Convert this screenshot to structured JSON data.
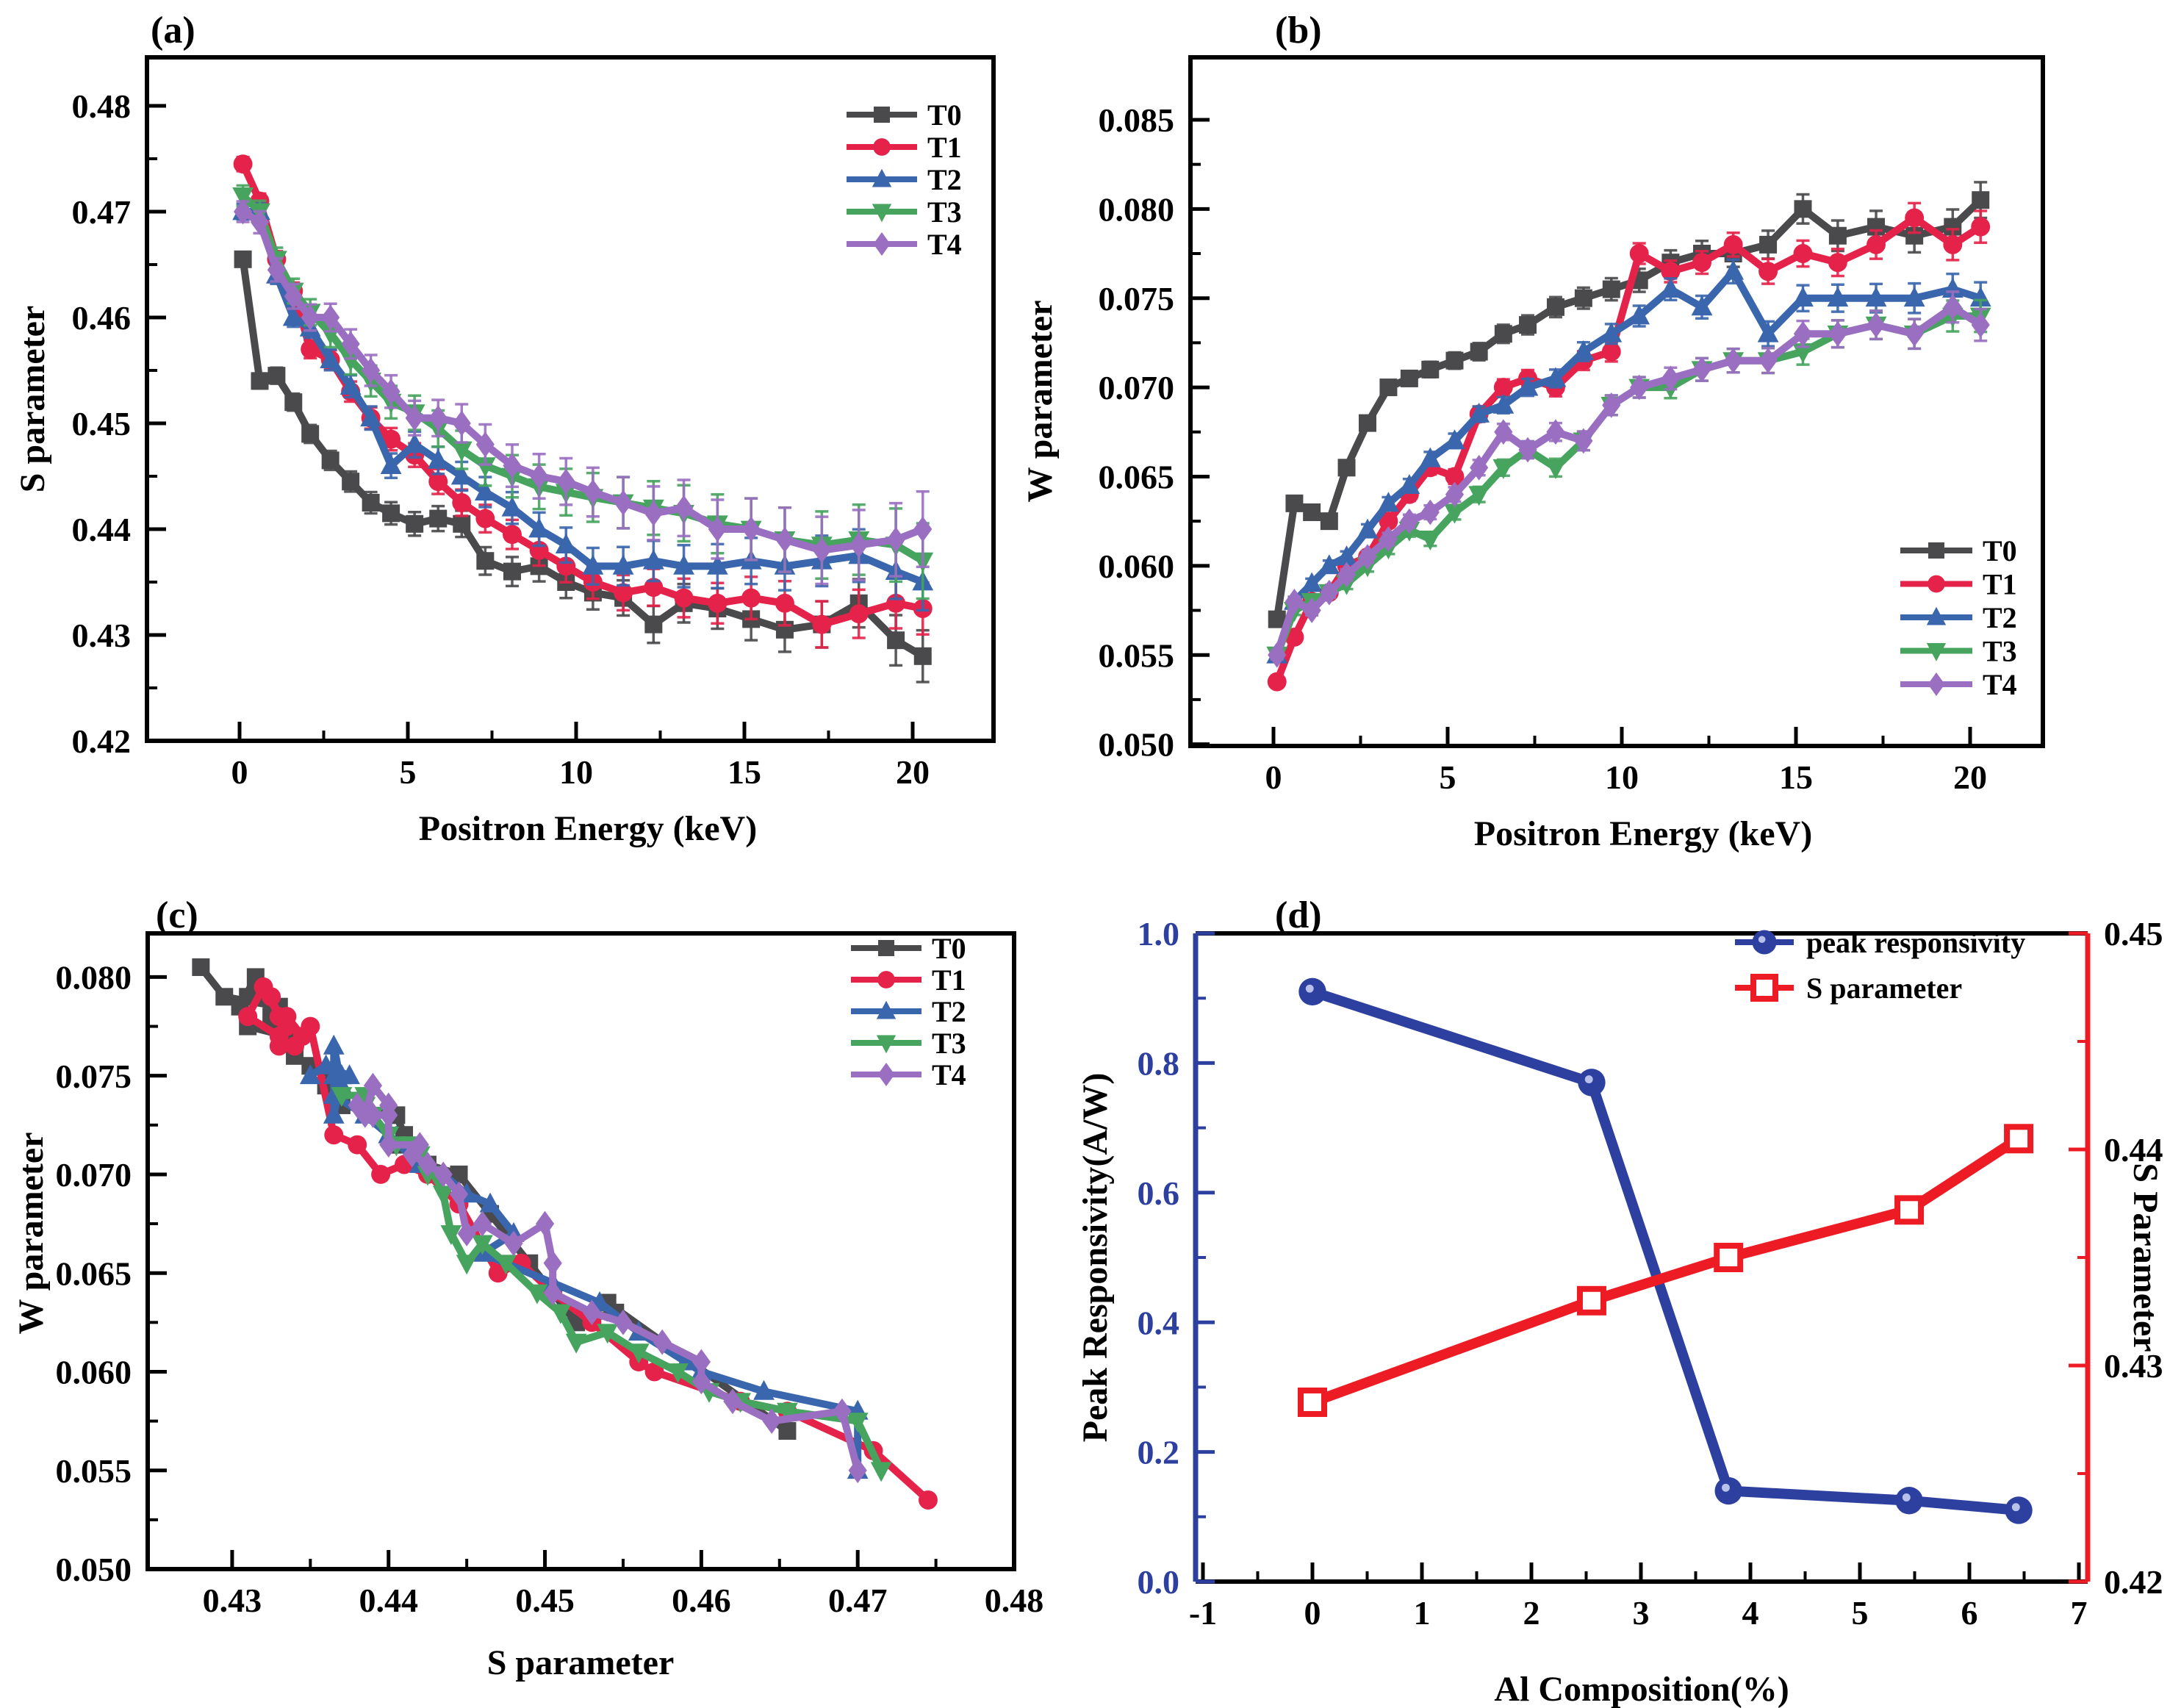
{
  "figure_background": "#ffffff",
  "chart_data": {
    "type": "line",
    "panels": [
      {
        "id": "a",
        "panel_letter": "(a)",
        "xlabel": "Positron Energy (keV)",
        "ylabel": "S parameter",
        "x_ticks": {
          "values": [
            0,
            5,
            10,
            15,
            20
          ],
          "labels": [
            "0",
            "5",
            "10",
            "15",
            "20"
          ]
        },
        "y_ticks": {
          "values": [
            0.42,
            0.43,
            0.44,
            0.45,
            0.46,
            0.47,
            0.48
          ],
          "labels": [
            "0.42",
            "0.43",
            "0.44",
            "0.45",
            "0.46",
            "0.47",
            "0.48"
          ]
        },
        "err_growth": 0.08,
        "x": [
          0.1,
          0.6,
          1.1,
          1.6,
          2.1,
          2.7,
          3.3,
          3.9,
          4.5,
          5.2,
          5.9,
          6.6,
          7.3,
          8.1,
          8.9,
          9.7,
          10.5,
          11.4,
          12.3,
          13.2,
          14.2,
          15.2,
          16.2,
          17.3,
          18.4,
          19.5,
          20.3
        ],
        "series": [
          {
            "name": "T0",
            "color": "#4a4a4c",
            "marker": "square",
            "err_base": 0.0011,
            "y": [
              0.4655,
              0.454,
              0.4545,
              0.452,
              0.449,
              0.4465,
              0.4445,
              0.4425,
              0.4415,
              0.4405,
              0.441,
              0.4405,
              0.437,
              0.436,
              0.4365,
              0.435,
              0.434,
              0.4335,
              0.431,
              0.433,
              0.4325,
              0.4315,
              0.4305,
              0.431,
              0.433,
              0.4295,
              0.428
            ]
          },
          {
            "name": "T1",
            "color": "#e5234a",
            "marker": "circle",
            "err_base": 0.0011,
            "y": [
              0.4745,
              0.471,
              0.4655,
              0.4625,
              0.457,
              0.456,
              0.453,
              0.4505,
              0.4485,
              0.447,
              0.4445,
              0.4425,
              0.441,
              0.4395,
              0.438,
              0.4365,
              0.435,
              0.434,
              0.4345,
              0.4335,
              0.433,
              0.4335,
              0.433,
              0.431,
              0.432,
              0.433,
              0.4325
            ]
          },
          {
            "name": "T2",
            "color": "#3a66ae",
            "marker": "triangle-up",
            "err_base": 0.0012,
            "y": [
              0.47,
              0.47,
              0.464,
              0.46,
              0.459,
              0.456,
              0.4535,
              0.4505,
              0.446,
              0.448,
              0.4465,
              0.445,
              0.4435,
              0.442,
              0.44,
              0.4385,
              0.4365,
              0.4365,
              0.437,
              0.4365,
              0.4365,
              0.437,
              0.4365,
              0.437,
              0.4375,
              0.436,
              0.435
            ]
          },
          {
            "name": "T3",
            "color": "#46a45f",
            "marker": "triangle-down",
            "err_base": 0.0016,
            "y": [
              0.4715,
              0.47,
              0.4655,
              0.4625,
              0.4605,
              0.4585,
              0.456,
              0.454,
              0.452,
              0.451,
              0.4495,
              0.4475,
              0.446,
              0.445,
              0.444,
              0.4435,
              0.443,
              0.4425,
              0.442,
              0.4415,
              0.4405,
              0.44,
              0.439,
              0.4385,
              0.439,
              0.4385,
              0.437
            ]
          },
          {
            "name": "T4",
            "color": "#9a6fc1",
            "marker": "diamond",
            "err_base": 0.0016,
            "y": [
              0.47,
              0.469,
              0.4645,
              0.462,
              0.46,
              0.46,
              0.4575,
              0.455,
              0.453,
              0.4505,
              0.4505,
              0.45,
              0.448,
              0.446,
              0.445,
              0.4445,
              0.4435,
              0.4425,
              0.4415,
              0.442,
              0.44,
              0.44,
              0.439,
              0.438,
              0.4385,
              0.439,
              0.44
            ]
          }
        ],
        "legend_labels": [
          "T0",
          "T1",
          "T2",
          "T3",
          "T4"
        ]
      },
      {
        "id": "b",
        "panel_letter": "(b)",
        "xlabel": "Positron Energy (keV)",
        "ylabel": "W parameter",
        "x_ticks": {
          "values": [
            0,
            5,
            10,
            15,
            20
          ],
          "labels": [
            "0",
            "5",
            "10",
            "15",
            "20"
          ]
        },
        "y_ticks": {
          "values": [
            0.05,
            0.055,
            0.06,
            0.065,
            0.07,
            0.075,
            0.08,
            0.085
          ],
          "labels": [
            "0.050",
            "0.055",
            "0.060",
            "0.065",
            "0.070",
            "0.075",
            "0.080",
            "0.085"
          ]
        },
        "err_growth": 0.08,
        "x": [
          0.1,
          0.6,
          1.1,
          1.6,
          2.1,
          2.7,
          3.3,
          3.9,
          4.5,
          5.2,
          5.9,
          6.6,
          7.3,
          8.1,
          8.9,
          9.7,
          10.5,
          11.4,
          12.3,
          13.2,
          14.2,
          15.2,
          16.2,
          17.3,
          18.4,
          19.5,
          20.3
        ],
        "series": [
          {
            "name": "T0",
            "color": "#4a4a4c",
            "marker": "square",
            "err_base": 0.00045,
            "y": [
              0.057,
              0.0635,
              0.063,
              0.0625,
              0.0655,
              0.068,
              0.07,
              0.0705,
              0.071,
              0.0715,
              0.072,
              0.073,
              0.0735,
              0.0745,
              0.075,
              0.0755,
              0.076,
              0.077,
              0.0775,
              0.0775,
              0.078,
              0.08,
              0.0785,
              0.079,
              0.0785,
              0.079,
              0.0805
            ]
          },
          {
            "name": "T1",
            "color": "#e5234a",
            "marker": "circle",
            "err_base": 0.0004,
            "y": [
              0.0535,
              0.056,
              0.058,
              0.0585,
              0.06,
              0.0605,
              0.0625,
              0.064,
              0.0655,
              0.065,
              0.0685,
              0.07,
              0.0705,
              0.07,
              0.0715,
              0.072,
              0.0775,
              0.0765,
              0.077,
              0.078,
              0.0765,
              0.0775,
              0.077,
              0.078,
              0.0795,
              0.078,
              0.079
            ]
          },
          {
            "name": "T2",
            "color": "#3a66ae",
            "marker": "triangle-up",
            "err_base": 0.0004,
            "y": [
              0.055,
              0.058,
              0.059,
              0.06,
              0.0605,
              0.062,
              0.0635,
              0.0645,
              0.066,
              0.067,
              0.0685,
              0.069,
              0.07,
              0.0705,
              0.072,
              0.073,
              0.074,
              0.0755,
              0.0745,
              0.0765,
              0.073,
              0.075,
              0.075,
              0.075,
              0.075,
              0.0755,
              0.075
            ]
          },
          {
            "name": "T3",
            "color": "#46a45f",
            "marker": "triangle-down",
            "err_base": 0.0004,
            "y": [
              0.055,
              0.0575,
              0.058,
              0.0585,
              0.059,
              0.06,
              0.061,
              0.062,
              0.0615,
              0.063,
              0.064,
              0.0655,
              0.0665,
              0.0655,
              0.067,
              0.069,
              0.07,
              0.07,
              0.071,
              0.0715,
              0.0715,
              0.072,
              0.073,
              0.0735,
              0.073,
              0.074,
              0.074
            ]
          },
          {
            "name": "T4",
            "color": "#9a6fc1",
            "marker": "diamond",
            "err_base": 0.0004,
            "y": [
              0.055,
              0.058,
              0.0575,
              0.0585,
              0.0595,
              0.0605,
              0.0615,
              0.0625,
              0.063,
              0.064,
              0.0655,
              0.0675,
              0.0665,
              0.0675,
              0.067,
              0.069,
              0.07,
              0.0705,
              0.071,
              0.0715,
              0.0715,
              0.073,
              0.073,
              0.0735,
              0.073,
              0.0745,
              0.0735
            ]
          }
        ],
        "legend_labels": [
          "T0",
          "T1",
          "T2",
          "T3",
          "T4"
        ]
      },
      {
        "id": "c",
        "panel_letter": "(c)",
        "xlabel": "S parameter",
        "ylabel": "W parameter",
        "x_ticks": {
          "values": [
            0.43,
            0.44,
            0.45,
            0.46,
            0.47,
            0.48
          ],
          "labels": [
            "0.43",
            "0.44",
            "0.45",
            "0.46",
            "0.47",
            "0.48"
          ]
        },
        "y_ticks": {
          "values": [
            0.05,
            0.055,
            0.06,
            0.065,
            0.07,
            0.075,
            0.08
          ],
          "labels": [
            "0.050",
            "0.055",
            "0.060",
            "0.065",
            "0.070",
            "0.075",
            "0.080"
          ]
        },
        "series_from": {
          "x_panel": "a",
          "y_panel": "b"
        },
        "legend_labels": [
          "T0",
          "T1",
          "T2",
          "T3",
          "T4"
        ]
      },
      {
        "id": "d",
        "panel_letter": "(d)",
        "xlabel": "Al Composition(%)",
        "ylabel_left": "Peak Responsivity(A/W)",
        "ylabel_right": "S Parameter",
        "axis_color_left": "#2e409f",
        "axis_color_right": "#ed1c24",
        "x_ticks": {
          "values": [
            -1,
            0,
            1,
            2,
            3,
            4,
            5,
            6,
            7
          ],
          "labels": [
            "-1",
            "0",
            "1",
            "2",
            "3",
            "4",
            "5",
            "6",
            "7"
          ]
        },
        "y_ticks_left": {
          "values": [
            0.0,
            0.2,
            0.4,
            0.6,
            0.8,
            1.0
          ],
          "labels": [
            "0.0",
            "0.2",
            "0.4",
            "0.6",
            "0.8",
            "1.0"
          ]
        },
        "y_ticks_right": {
          "values": [
            0.42,
            0.43,
            0.44,
            0.45
          ],
          "labels": [
            "0.42",
            "0.43",
            "0.44",
            "0.45"
          ]
        },
        "x": [
          0.0,
          2.55,
          3.8,
          5.45,
          6.45
        ],
        "series": [
          {
            "name": "peak responsivity",
            "color": "#2e409f",
            "marker": "sphere",
            "axis": "left",
            "y": [
              0.91,
              0.77,
              0.14,
              0.125,
              0.11
            ]
          },
          {
            "name": "S parameter",
            "color": "#ed1c24",
            "marker": "osquare",
            "axis": "right",
            "y": [
              0.4283,
              0.433,
              0.435,
              0.4372,
              0.4405
            ]
          }
        ],
        "legend_labels": [
          "peak responsivity",
          "S parameter"
        ]
      }
    ]
  }
}
